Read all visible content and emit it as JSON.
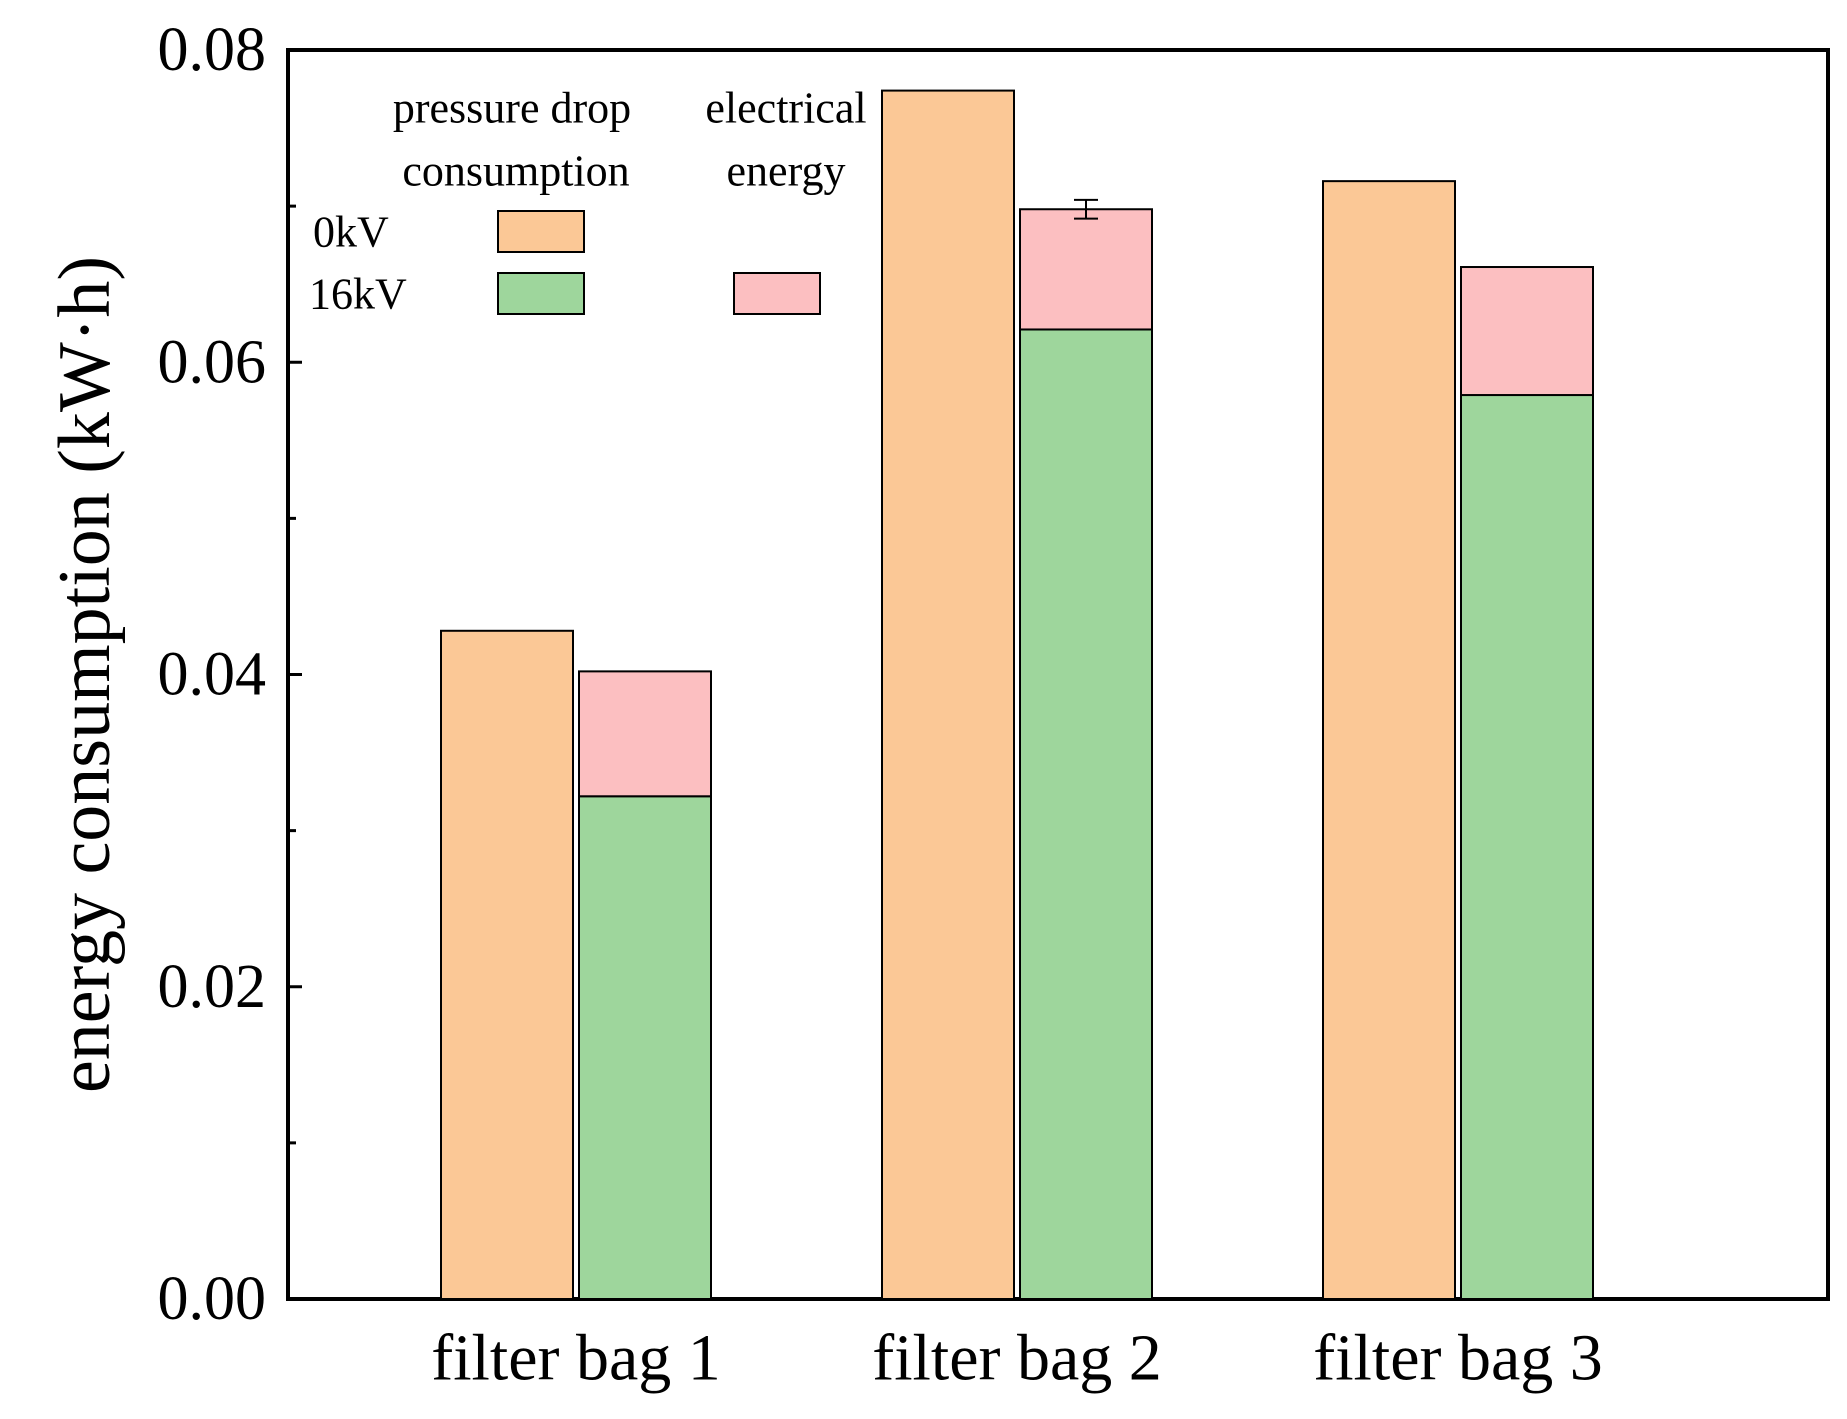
{
  "chart_data": {
    "type": "bar",
    "subtype": "grouped-stacked",
    "ylabel": "energy consumption (kW·h)",
    "xlabel": "",
    "ylim": [
      0,
      0.08
    ],
    "yticks": [
      "0.00",
      "0.02",
      "0.04",
      "0.06",
      "0.08"
    ],
    "categories": [
      "filter bag 1",
      "filter bag 2",
      "filter bag 3"
    ],
    "series": [
      {
        "name": "0kV pressure drop consumption",
        "group": "0kV",
        "component": "pressure drop consumption",
        "color": "#FBC896",
        "values": [
          0.0428,
          0.0774,
          0.0716
        ]
      },
      {
        "name": "16kV pressure drop consumption",
        "group": "16kV",
        "component": "pressure drop consumption",
        "color": "#9ED69C",
        "values": [
          0.0322,
          0.0621,
          0.0579
        ]
      },
      {
        "name": "16kV electrical energy",
        "group": "16kV",
        "component": "electrical energy",
        "color": "#FCBFC1",
        "values": [
          0.008,
          0.0077,
          0.0082
        ]
      }
    ],
    "error_bars": [
      {
        "category": "filter bag 2",
        "group": "16kV",
        "total": 0.0698,
        "error": 0.0006
      }
    ],
    "legend": {
      "position": "top-left",
      "column_headers": [
        [
          "pressure drop",
          "consumption"
        ],
        [
          "electrical",
          "energy"
        ]
      ],
      "rows": [
        "0kV",
        "16kV"
      ]
    }
  }
}
